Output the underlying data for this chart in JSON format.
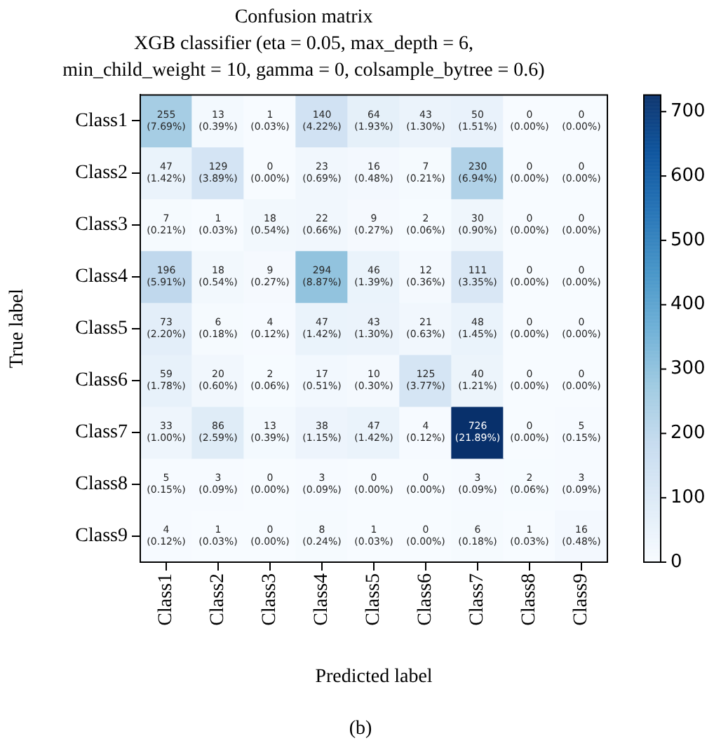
{
  "chart_data": {
    "type": "heatmap",
    "title": "Confusion matrix",
    "subtitle": "XGB classifier (eta = 0.05, max_depth = 6,\nmin_child_weight = 10, gamma = 0, colsample_bytree = 0.6)",
    "xlabel": "Predicted label",
    "ylabel": "True label",
    "categories": [
      "Class1",
      "Class2",
      "Class3",
      "Class4",
      "Class5",
      "Class6",
      "Class7",
      "Class8",
      "Class9"
    ],
    "y_categories": [
      "Class1",
      "Class2",
      "Class3",
      "Class4",
      "Class5",
      "Class6",
      "Class7",
      "Class8",
      "Class9"
    ],
    "cells": [
      [
        255,
        13,
        1,
        140,
        64,
        43,
        50,
        0,
        0
      ],
      [
        47,
        129,
        0,
        23,
        16,
        7,
        230,
        0,
        0
      ],
      [
        7,
        1,
        18,
        22,
        9,
        2,
        30,
        0,
        0
      ],
      [
        196,
        18,
        9,
        294,
        46,
        12,
        111,
        0,
        0
      ],
      [
        73,
        6,
        4,
        47,
        43,
        21,
        48,
        0,
        0
      ],
      [
        59,
        20,
        2,
        17,
        10,
        125,
        40,
        0,
        0
      ],
      [
        33,
        86,
        13,
        38,
        47,
        4,
        726,
        0,
        5
      ],
      [
        5,
        3,
        0,
        3,
        0,
        0,
        3,
        2,
        3
      ],
      [
        4,
        1,
        0,
        8,
        1,
        0,
        6,
        1,
        16
      ]
    ],
    "cell_labels": [
      [
        "255\n(7.69%)",
        "13\n(0.39%)",
        "1\n(0.03%)",
        "140\n(4.22%)",
        "64\n(1.93%)",
        "43\n(1.30%)",
        "50\n(1.51%)",
        "0\n(0.00%)",
        "0\n(0.00%)"
      ],
      [
        "47\n(1.42%)",
        "129\n(3.89%)",
        "0\n(0.00%)",
        "23\n(0.69%)",
        "16\n(0.48%)",
        "7\n(0.21%)",
        "230\n(6.94%)",
        "0\n(0.00%)",
        "0\n(0.00%)"
      ],
      [
        "7\n(0.21%)",
        "1\n(0.03%)",
        "18\n(0.54%)",
        "22\n(0.66%)",
        "9\n(0.27%)",
        "2\n(0.06%)",
        "30\n(0.90%)",
        "0\n(0.00%)",
        "0\n(0.00%)"
      ],
      [
        "196\n(5.91%)",
        "18\n(0.54%)",
        "9\n(0.27%)",
        "294\n(8.87%)",
        "46\n(1.39%)",
        "12\n(0.36%)",
        "111\n(3.35%)",
        "0\n(0.00%)",
        "0\n(0.00%)"
      ],
      [
        "73\n(2.20%)",
        "6\n(0.18%)",
        "4\n(0.12%)",
        "47\n(1.42%)",
        "43\n(1.30%)",
        "21\n(0.63%)",
        "48\n(1.45%)",
        "0\n(0.00%)",
        "0\n(0.00%)"
      ],
      [
        "59\n(1.78%)",
        "20\n(0.60%)",
        "2\n(0.06%)",
        "17\n(0.51%)",
        "10\n(0.30%)",
        "125\n(3.77%)",
        "40\n(1.21%)",
        "0\n(0.00%)",
        "0\n(0.00%)"
      ],
      [
        "33\n(1.00%)",
        "86\n(2.59%)",
        "13\n(0.39%)",
        "38\n(1.15%)",
        "47\n(1.42%)",
        "4\n(0.12%)",
        "726\n(21.89%)",
        "0\n(0.00%)",
        "5\n(0.15%)"
      ],
      [
        "5\n(0.15%)",
        "3\n(0.09%)",
        "0\n(0.00%)",
        "3\n(0.09%)",
        "0\n(0.00%)",
        "0\n(0.00%)",
        "3\n(0.09%)",
        "2\n(0.06%)",
        "3\n(0.09%)"
      ],
      [
        "4\n(0.12%)",
        "1\n(0.03%)",
        "0\n(0.00%)",
        "8\n(0.24%)",
        "1\n(0.03%)",
        "0\n(0.00%)",
        "6\n(0.18%)",
        "1\n(0.03%)",
        "16\n(0.48%)"
      ]
    ],
    "clim": [
      0,
      726
    ],
    "cticks": [
      0,
      100,
      200,
      300,
      400,
      500,
      600,
      700
    ],
    "annotations": [
      "(b)"
    ]
  }
}
